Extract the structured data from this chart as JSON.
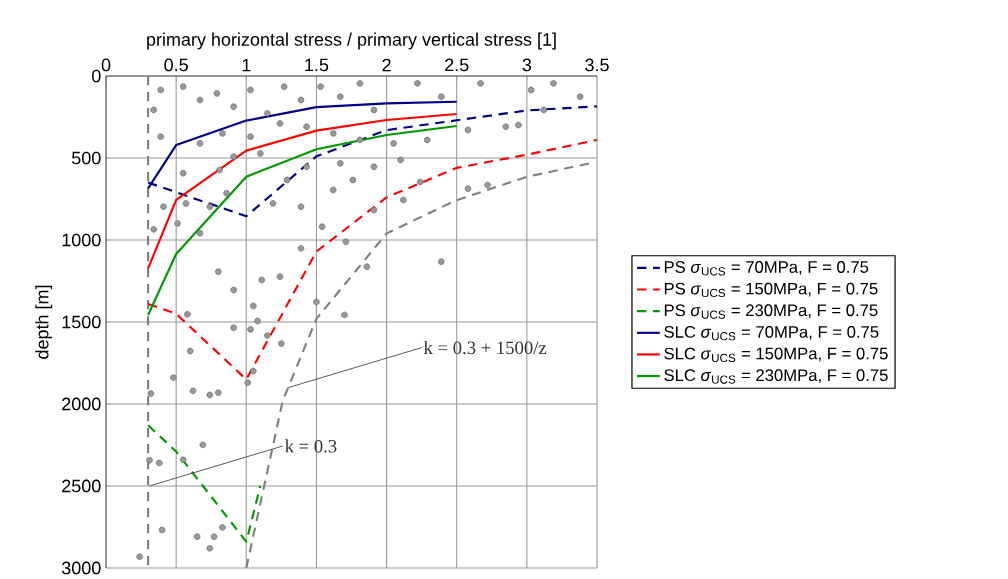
{
  "chart_data": {
    "type": "line",
    "xlabel": "primary horizontal stress / primary vertical stress [1]",
    "ylabel": "depth [m]",
    "xlim": [
      0,
      3.5
    ],
    "xticks": [
      0,
      0.5,
      1,
      1.5,
      2,
      2.5,
      3,
      3.5
    ],
    "ylim": [
      3000,
      0
    ],
    "yticks": [
      0,
      500,
      1000,
      1500,
      2000,
      2500,
      3000
    ],
    "grid": true,
    "legend": "right",
    "series": [
      {
        "type": "scatter",
        "marker": "circle",
        "color": "#555555",
        "x": [
          0.24,
          0.4,
          0.65,
          0.77,
          0.83,
          0.74,
          0.31,
          0.38,
          0.55,
          0.69,
          0.32,
          0.48,
          0.62,
          0.74,
          0.8,
          0.6,
          1.01,
          1.05,
          0.91,
          1.03,
          1.08,
          1.05,
          1.15,
          1.25,
          1.5,
          1.7,
          0.58,
          2.39,
          0.34,
          0.51,
          0.67,
          0.8,
          0.91,
          1.11,
          1.24,
          1.39,
          1.54,
          1.71,
          1.86,
          1.91,
          2.12,
          2.24,
          2.58,
          2.72,
          2.85,
          2.94,
          3.12,
          3.19,
          3.38,
          3.03,
          2.67,
          2.39,
          2.22,
          2.05,
          2.29,
          2.58,
          0.41,
          0.57,
          0.74,
          0.86,
          1.19,
          1.39,
          1.62,
          1.76,
          1.43,
          1.67,
          1.91,
          2.1,
          1.29,
          0.81,
          0.55,
          0.39,
          0.34,
          0.39,
          0.55,
          0.67,
          0.79,
          0.91,
          1.03,
          1.15,
          1.27,
          1.39,
          1.53,
          1.67,
          1.81,
          1.91,
          0.67,
          0.83,
          1.03,
          1.24,
          1.43,
          1.62,
          1.81,
          0.91,
          1.1
        ],
        "values": [
          2931,
          2768,
          2809,
          2809,
          2752,
          2880,
          2343,
          2360,
          2340,
          2249,
          1936,
          1839,
          1920,
          1945,
          1931,
          1677,
          1870,
          1799,
          1535,
          1545,
          1494,
          1402,
          1583,
          1632,
          1378,
          1457,
          1453,
          1132,
          935,
          899,
          959,
          1193,
          1305,
          1244,
          1224,
          1051,
          919,
          1010,
          1163,
          817,
          756,
          646,
          687,
          665,
          309,
          299,
          207,
          45,
          126,
          85,
          45,
          126,
          45,
          411,
          390,
          329,
          797,
          777,
          797,
          715,
          777,
          797,
          695,
          634,
          553,
          533,
          553,
          512,
          634,
          573,
          593,
          370,
          207,
          85,
          65,
          146,
          106,
          187,
          85,
          228,
          65,
          146,
          65,
          126,
          45,
          207,
          411,
          350,
          370,
          289,
          309,
          350,
          390,
          492,
          472
        ]
      },
      {
        "line_style": "dashed",
        "color": "#808080",
        "x": [
          0.3,
          0.3
        ],
        "values": [
          0,
          3000
        ]
      },
      {
        "line_style": "dashed",
        "color": "#808080",
        "x": [
          1,
          1.26,
          1.5,
          2,
          2.49,
          3,
          3.46
        ],
        "values": [
          3000,
          1980,
          1480,
          960,
          760,
          615,
          530
        ]
      },
      {
        "name": "PS *σ*$_{UCS}$ = 70MPa, F = 0.75",
        "line_style": "dashed",
        "color": "#00008b",
        "x": [
          0.3,
          1,
          1.5,
          2,
          2.5,
          3,
          3.5
        ],
        "values": [
          650,
          855,
          490,
          330,
          270,
          210,
          185
        ]
      },
      {
        "name": "PS *σ*$_{UCS}$ = 150MPa, F = 0.75",
        "line_style": "dashed",
        "color": "#ff0000",
        "x": [
          0.3,
          0.5,
          1,
          1.5,
          2,
          2.5,
          3,
          3.5
        ],
        "values": [
          1390,
          1450,
          1850,
          1070,
          740,
          560,
          480,
          390
        ]
      },
      {
        "name": "PS *σ*$_{UCS}$ = 230MPa, F = 0.75",
        "line_style": "dashed",
        "color": "#009900",
        "x": [
          0.3,
          0.5,
          1,
          1.1
        ],
        "values": [
          2130,
          2290,
          2840,
          2500
        ]
      },
      {
        "name": "SLC *σ*$_{UCS}$ = 70MPa, F = 0.75",
        "line_style": "solid",
        "color": "#00008b",
        "x": [
          0.3,
          0.5,
          1,
          1.5,
          2,
          2.5
        ],
        "values": [
          685,
          421,
          272,
          190,
          167,
          157
        ]
      },
      {
        "name": "SLC *σ*$_{UCS}$ = 150MPa, F = 0.75",
        "line_style": "solid",
        "color": "#ff0000",
        "x": [
          0.3,
          0.5,
          1,
          1.5,
          2,
          2.5
        ],
        "values": [
          1173,
          756,
          455,
          333,
          268,
          232
        ]
      },
      {
        "name": "SLC *σ*$_{UCS}$ = 230MPa, F = 0.75",
        "line_style": "solid",
        "color": "#009900",
        "x": [
          0.3,
          0.5,
          1,
          1.5,
          2,
          2.5
        ],
        "values": [
          1457,
          1085,
          614,
          447,
          360,
          305
        ]
      }
    ],
    "annotations": [
      {
        "text": "k = 0.3 + 1500/z",
        "x": 1.3,
        "y": 1900
      },
      {
        "text": "k = 0.3",
        "x": 0.31,
        "y": 2500
      }
    ]
  }
}
